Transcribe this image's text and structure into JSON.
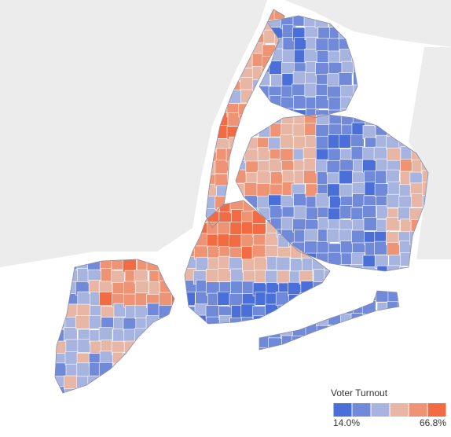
{
  "legend": {
    "title": "Voter Turnout",
    "min": {
      "value": 14.0,
      "label": "14.0%"
    },
    "max": {
      "value": 66.8,
      "label": "66.8%"
    },
    "colors": [
      "#4a6fd8",
      "#7089d8",
      "#a7b4e0",
      "#e8b6a5",
      "#ee9374",
      "#f26b43"
    ]
  }
}
